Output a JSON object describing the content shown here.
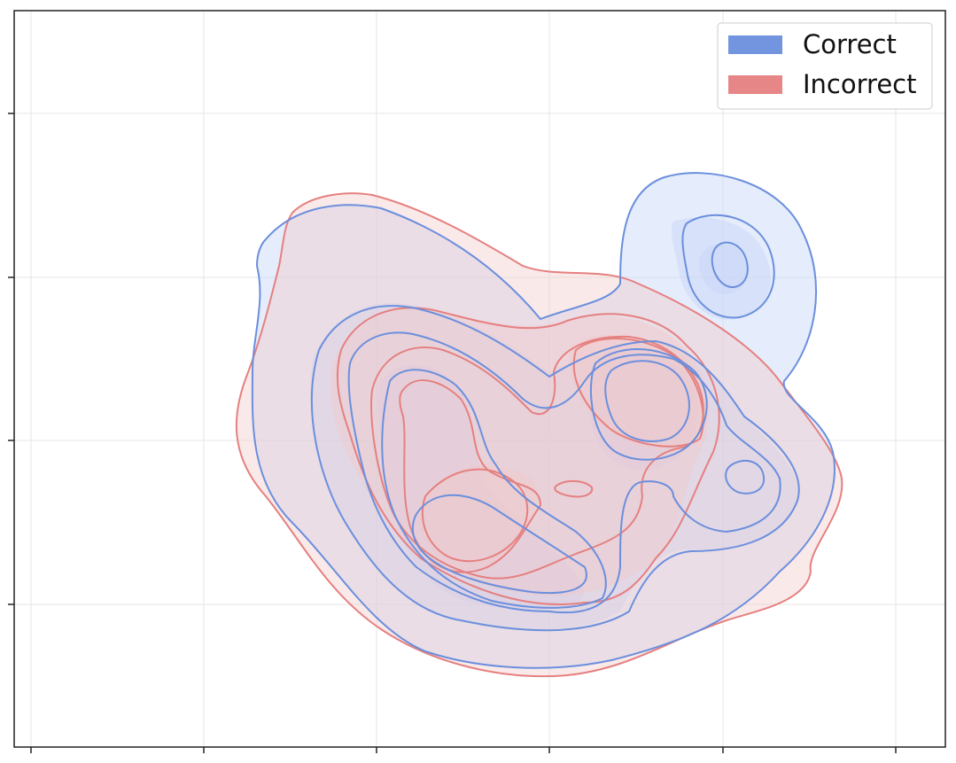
{
  "chart_data": {
    "type": "kde-contour",
    "title": "",
    "xlabel": "",
    "ylabel": "",
    "x_ticks": [
      "",
      "",
      "",
      "",
      "",
      ""
    ],
    "y_ticks": [
      "",
      "",
      "",
      ""
    ],
    "grid": true,
    "legend_position": "top-right",
    "series": [
      {
        "name": "Correct",
        "color": "#6b8fdd",
        "fill": "#c6d4f7",
        "density_peaks": [
          {
            "label": "upper-right cluster",
            "level": 4
          },
          {
            "label": "center-right cluster",
            "level": 4
          },
          {
            "label": "lower-left cluster",
            "level": 4
          }
        ]
      },
      {
        "name": "Incorrect",
        "color": "#e58080",
        "fill": "#f3c9c9",
        "density_peaks": [
          {
            "label": "center-right cluster",
            "level": 3
          },
          {
            "label": "lower-left cluster",
            "level": 3
          },
          {
            "label": "small central island",
            "level": 3
          }
        ]
      }
    ]
  }
}
